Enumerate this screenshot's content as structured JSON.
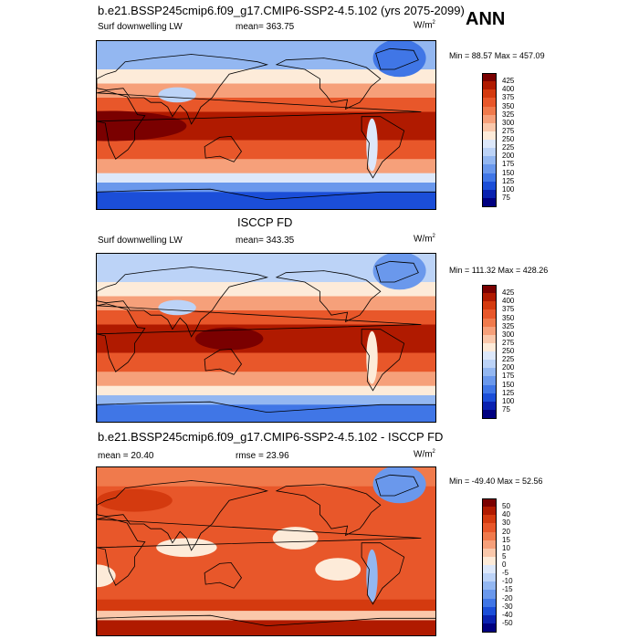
{
  "header": {
    "title": "b.e21.BSSP245cmip6.f09_g17.CMIP6-SSP2-4.5.102 (yrs 2075-2099)",
    "season": "ANN"
  },
  "panels": [
    {
      "id": "model",
      "title": "",
      "variable": "Surf downwelling LW",
      "stat_label": "mean= 363.75",
      "units": "W/m",
      "units_sup": "2",
      "range_text": "Min =  88.57 Max = 457.09",
      "colorbar_labels": [
        "425",
        "400",
        "375",
        "350",
        "325",
        "300",
        "275",
        "250",
        "225",
        "200",
        "175",
        "150",
        "125",
        "100",
        "75"
      ]
    },
    {
      "id": "obs",
      "title": "ISCCP FD",
      "variable": "Surf downwelling LW",
      "stat_label": "mean= 343.35",
      "units": "W/m",
      "units_sup": "2",
      "range_text": "Min = 111.32 Max = 428.26",
      "colorbar_labels": [
        "425",
        "400",
        "375",
        "350",
        "325",
        "300",
        "275",
        "250",
        "225",
        "200",
        "175",
        "150",
        "125",
        "100",
        "75"
      ]
    },
    {
      "id": "diff",
      "title": "b.e21.BSSP245cmip6.f09_g17.CMIP6-SSP2-4.5.102 - ISCCP FD",
      "variable": "mean =  20.40",
      "stat_label": "rmse =  23.96",
      "units": "W/m",
      "units_sup": "2",
      "range_text": "Min = -49.40 Max =  52.56",
      "colorbar_labels": [
        "50",
        "40",
        "30",
        "20",
        "15",
        "10",
        "5",
        "0",
        "-5",
        "-10",
        "-15",
        "-20",
        "-30",
        "-40",
        "-50"
      ]
    }
  ],
  "colors": {
    "scale_main": [
      "#7a0000",
      "#b01a00",
      "#d43a0f",
      "#e8572a",
      "#f07a4c",
      "#f6a07a",
      "#fac8ab",
      "#fdebd9",
      "#dde8fa",
      "#bcd3f7",
      "#93b7f1",
      "#6a98ec",
      "#4076e6",
      "#1b4ed8",
      "#0a22b0",
      "#000080"
    ],
    "scale_diff": [
      "#7a0000",
      "#b01a00",
      "#d43a0f",
      "#e8572a",
      "#f07a4c",
      "#f6a07a",
      "#fac8ab",
      "#fdebd9",
      "#dde8fa",
      "#bcd3f7",
      "#93b7f1",
      "#6a98ec",
      "#4076e6",
      "#1b4ed8",
      "#0a22b0",
      "#000080"
    ]
  }
}
